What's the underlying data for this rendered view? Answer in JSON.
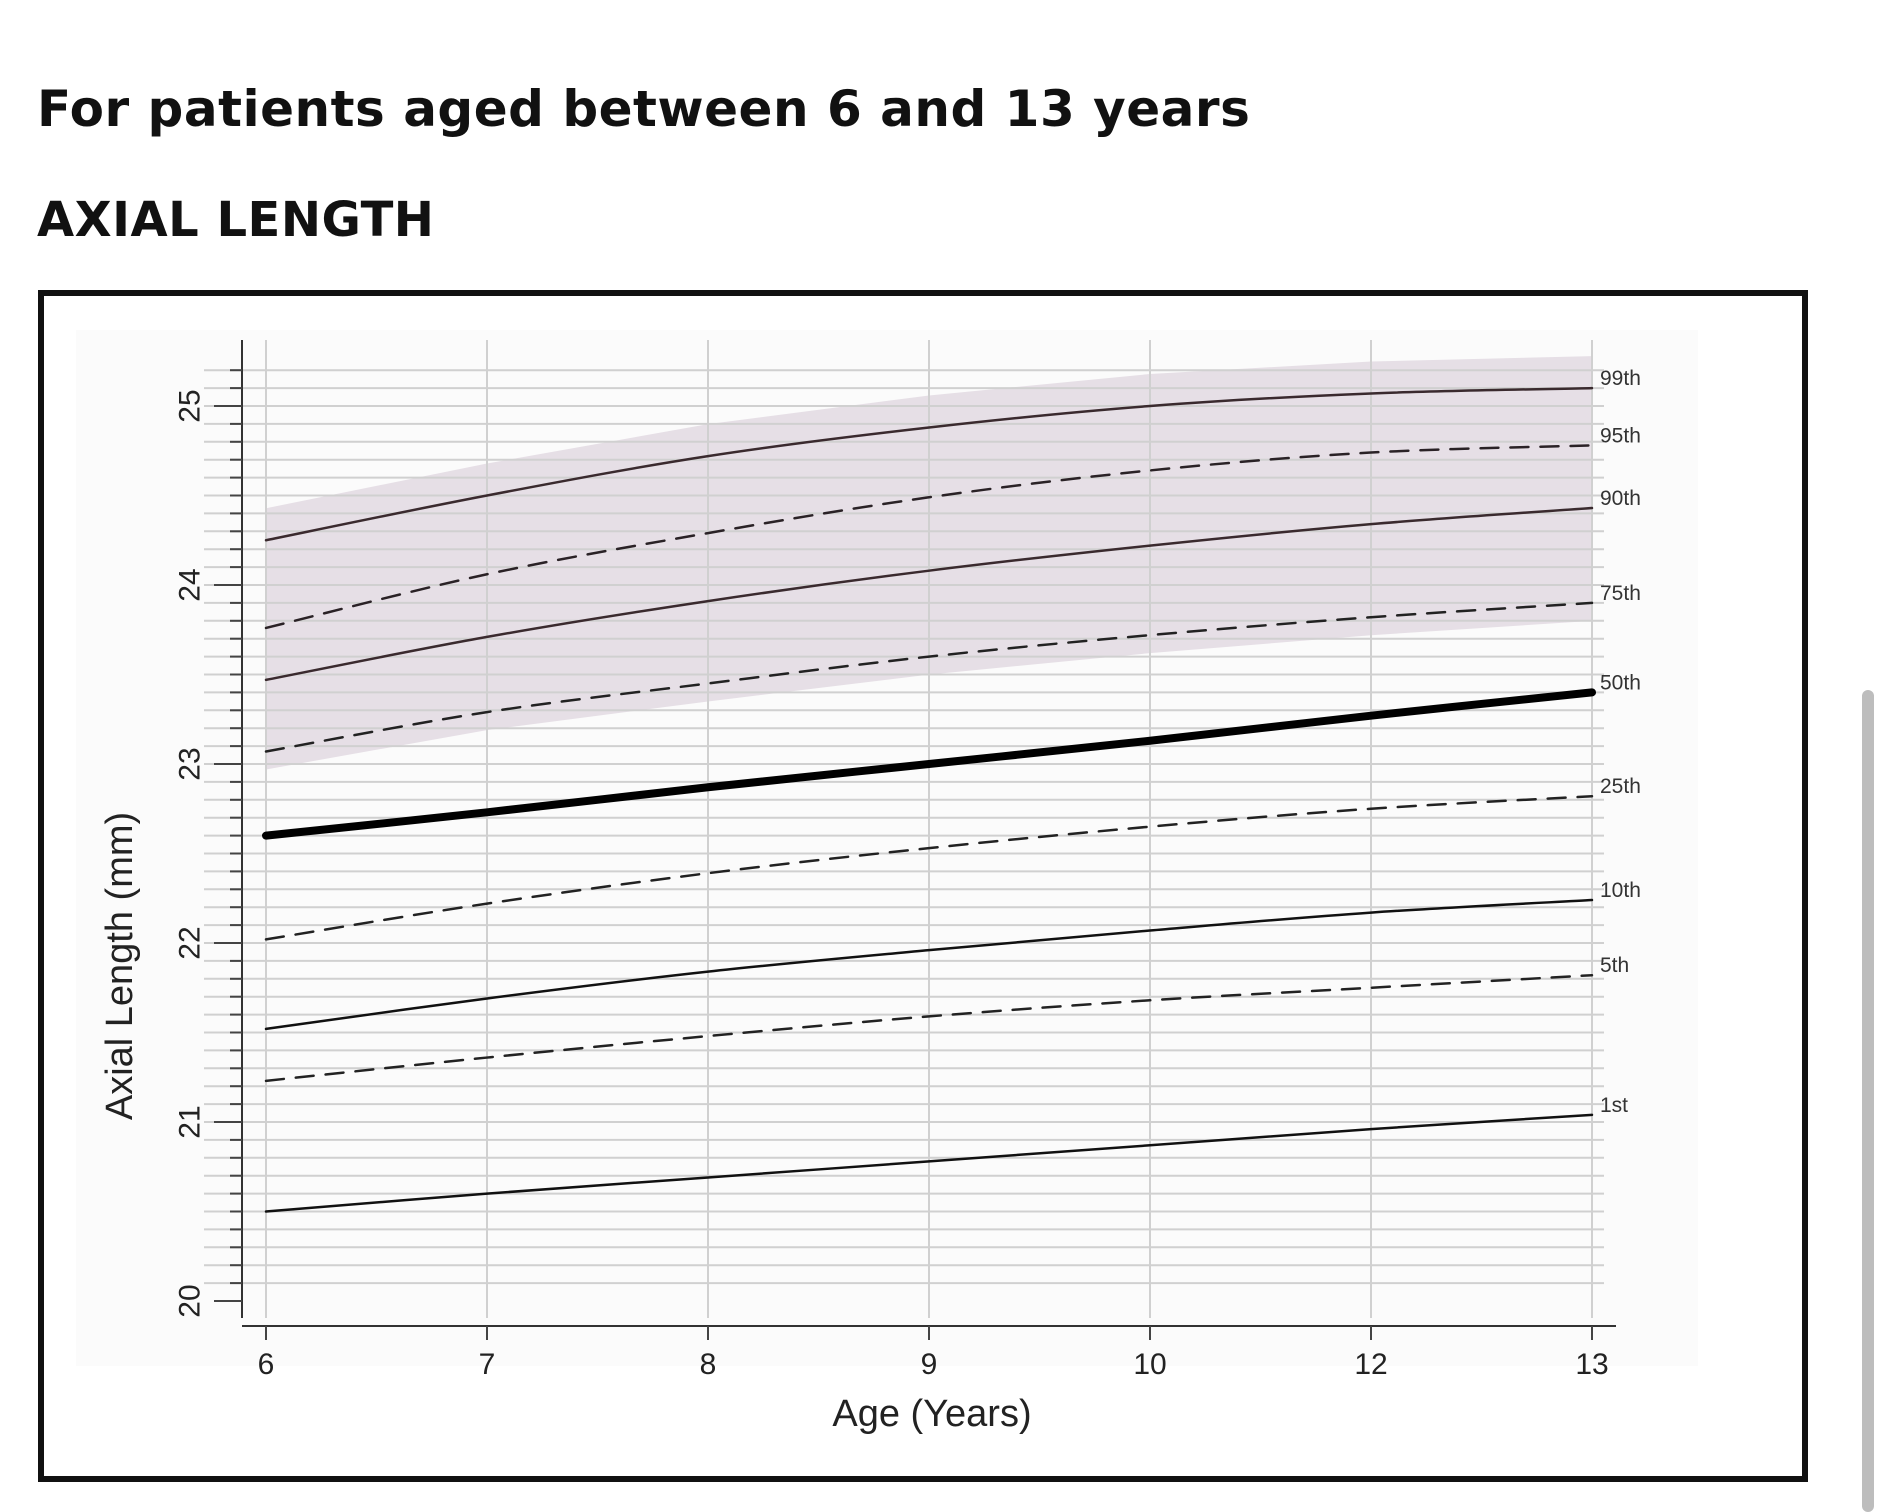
{
  "page": {
    "heading": "For patients aged between 6 and 13 years",
    "subheading": "AXIAL LENGTH"
  },
  "chart_data": {
    "type": "line",
    "title": "",
    "xlabel": "Age (Years)",
    "ylabel": "Axial Length (mm)",
    "x_ticks": [
      "6",
      "7",
      "8",
      "9",
      "10",
      "12",
      "13"
    ],
    "y_ticks": [
      "20",
      "21",
      "22",
      "23",
      "24",
      "25"
    ],
    "ylim": [
      20,
      25.2
    ],
    "grid": true,
    "shaded_band": {
      "from_series": "75th",
      "to_series": "99th",
      "color": "#e6dfe6"
    },
    "series": [
      {
        "name": "99th",
        "style": "solid",
        "color": "#3a2a2e",
        "values": [
          24.25,
          24.5,
          24.72,
          24.88,
          25.0,
          25.07,
          25.1
        ]
      },
      {
        "name": "95th",
        "style": "dashed",
        "color": "#2a2226",
        "values": [
          23.76,
          24.06,
          24.29,
          24.49,
          24.64,
          24.74,
          24.78
        ]
      },
      {
        "name": "90th",
        "style": "solid",
        "color": "#3a2a2e",
        "values": [
          23.47,
          23.71,
          23.91,
          24.08,
          24.22,
          24.34,
          24.43
        ]
      },
      {
        "name": "75th",
        "style": "dashed",
        "color": "#222",
        "values": [
          23.07,
          23.29,
          23.45,
          23.6,
          23.72,
          23.82,
          23.9
        ]
      },
      {
        "name": "50th",
        "style": "bold",
        "color": "#000",
        "values": [
          22.6,
          22.73,
          22.87,
          23.0,
          23.13,
          23.27,
          23.4
        ]
      },
      {
        "name": "25th",
        "style": "dashed",
        "color": "#222",
        "values": [
          22.02,
          22.22,
          22.39,
          22.53,
          22.65,
          22.75,
          22.82
        ]
      },
      {
        "name": "10th",
        "style": "solid",
        "color": "#111",
        "values": [
          21.52,
          21.69,
          21.84,
          21.96,
          22.07,
          22.17,
          22.24
        ]
      },
      {
        "name": "5th",
        "style": "dashed",
        "color": "#222",
        "values": [
          21.23,
          21.36,
          21.48,
          21.59,
          21.68,
          21.75,
          21.82
        ]
      },
      {
        "name": "1st",
        "style": "solid",
        "color": "#111",
        "values": [
          20.5,
          20.6,
          20.69,
          20.78,
          20.87,
          20.96,
          21.04
        ]
      }
    ]
  }
}
